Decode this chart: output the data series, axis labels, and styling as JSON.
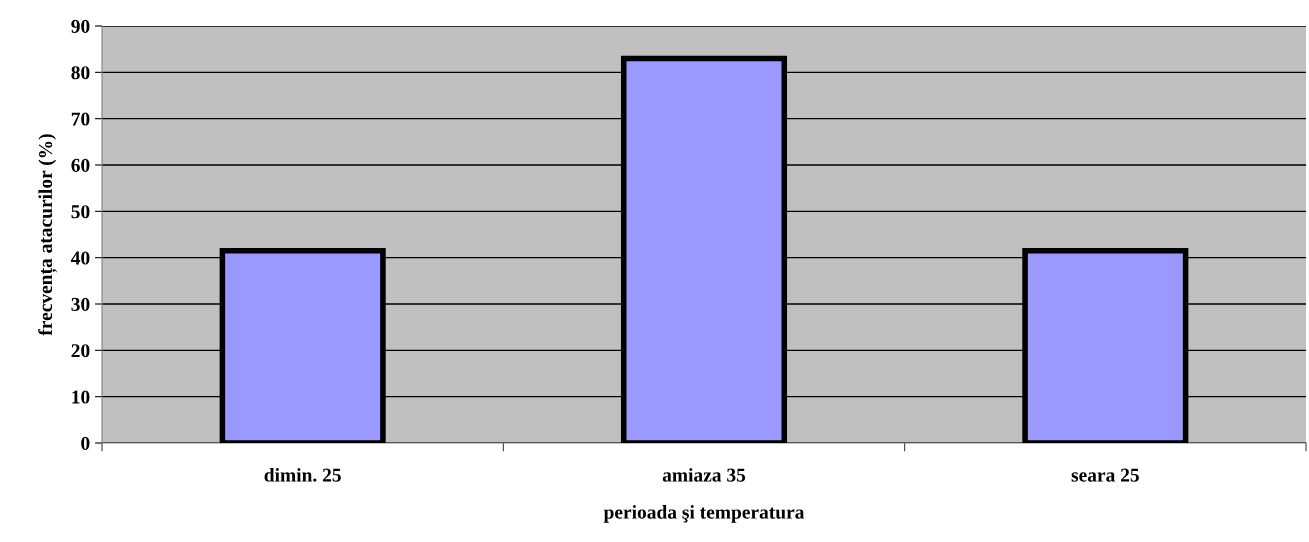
{
  "chart_data": {
    "type": "bar",
    "xlabel": "perioada şi temperatura",
    "ylabel": "frecvența atacurilor (%)",
    "categories": [
      "dimin. 25",
      "amiaza 35",
      "seara 25"
    ],
    "values": [
      41.5,
      83,
      41.5
    ],
    "color": "#9999ff",
    "ylim": [
      0,
      90
    ],
    "yticks": [
      0,
      10,
      20,
      30,
      40,
      50,
      60,
      70,
      80,
      90
    ],
    "grid": "y"
  }
}
